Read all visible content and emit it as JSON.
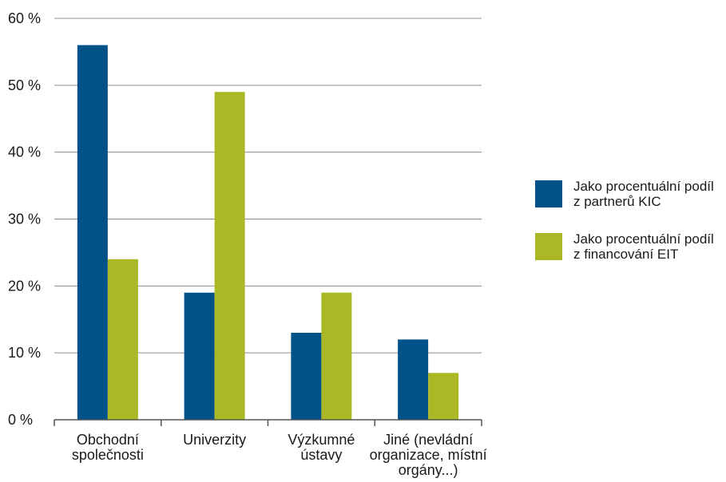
{
  "chart_data": {
    "type": "bar",
    "categories": [
      [
        "Obchodní",
        "společnosti"
      ],
      [
        "Univerzity"
      ],
      [
        "Výzkumné",
        "ústavy"
      ],
      [
        "Jiné (nevládní",
        "organizace, místní",
        "orgány...)"
      ]
    ],
    "series": [
      {
        "name": "Jako procentuální podíl z partnerů KIC",
        "name_lines": [
          "Jako procentuální podíl",
          "z partnerů KIC"
        ],
        "color": "#005288",
        "values": [
          56,
          19,
          13,
          12
        ]
      },
      {
        "name": "Jako procentuální podíl z financování EIT",
        "name_lines": [
          "Jako procentuální podíl",
          "z financování EIT"
        ],
        "color": "#a9b824",
        "values": [
          24,
          49,
          19,
          7
        ]
      }
    ],
    "ylim": [
      0,
      60
    ],
    "yticks": [
      0,
      10,
      20,
      30,
      40,
      50,
      60
    ],
    "ytick_labels": [
      "0 %",
      "10 %",
      "20 %",
      "30 %",
      "40 %",
      "50 %",
      "60 %"
    ],
    "grid": true,
    "legend_position": "right"
  }
}
